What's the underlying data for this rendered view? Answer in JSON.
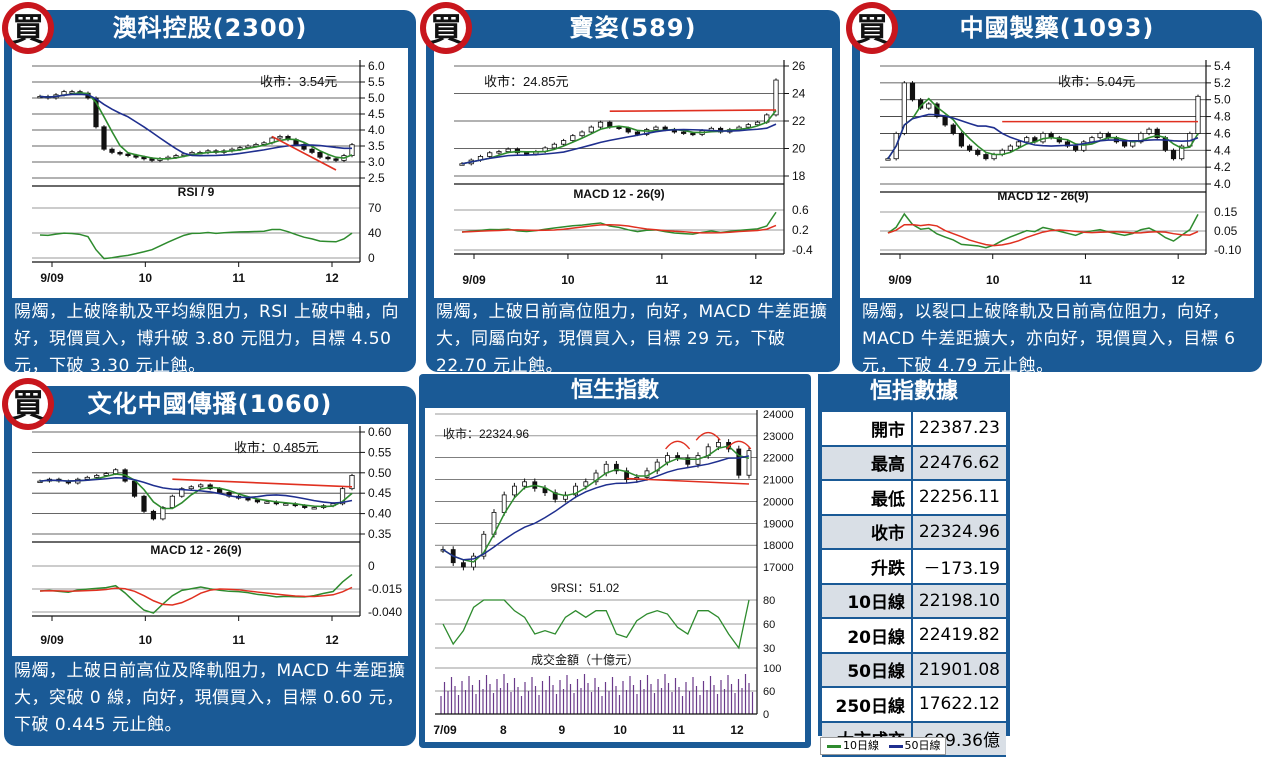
{
  "badge_char": "買",
  "panels": [
    {
      "title": "澳科控股(2300)",
      "close_label": "收市：3.54元",
      "desc": "陽燭，上破降軌及平均線阻力，RSI 上破中軸，向好，現價買入，博升破 3.80 元阻力，目標 4.50 元，下破 3.30 元止蝕。",
      "indicator_label": "RSI / 9",
      "price_ticks": [
        "6.0",
        "5.5",
        "5.0",
        "4.5",
        "4.0",
        "3.5",
        "3.0",
        "2.5"
      ],
      "ind_ticks": [
        "70",
        "40",
        "0"
      ],
      "x_ticks": [
        "9/09",
        "10",
        "11",
        "12"
      ]
    },
    {
      "title": "寶姿(589)",
      "close_label": "收市：24.85元",
      "desc": "陽燭，上破日前高位阻力，向好，MACD 牛差距擴大，同屬向好，現價買入，目標 29 元，下破 22.70 元止蝕。",
      "indicator_label": "MACD 12 - 26(9)",
      "price_ticks": [
        "26",
        "24",
        "22",
        "20",
        "18"
      ],
      "ind_ticks": [
        "0.6",
        "0.2",
        "-0.4"
      ],
      "x_ticks": [
        "9/09",
        "10",
        "11",
        "12"
      ]
    },
    {
      "title": "中國製藥(1093)",
      "close_label": "收市：5.04元",
      "desc": "陽燭，以裂口上破降軌及日前高位阻力，向好，MACD 牛差距擴大，亦向好，現價買入，目標 6 元，下破 4.79 元止蝕。",
      "indicator_label": "MACD 12 - 26(9)",
      "price_ticks": [
        "5.4",
        "5.2",
        "5.0",
        "4.8",
        "4.6",
        "4.4",
        "4.2",
        "4.0"
      ],
      "ind_ticks": [
        "0.15",
        "0.05",
        "-0.10"
      ],
      "x_ticks": [
        "9/09",
        "10",
        "11",
        "12"
      ]
    },
    {
      "title": "文化中國傳播(1060)",
      "close_label": "收市：0.485元",
      "desc": "陽燭，上破日前高位及降軌阻力，MACD 牛差距擴大，突破 0 線，向好，現價買入，目標 0.60 元，下破 0.445 元止蝕。",
      "indicator_label": "MACD 12 - 26(9)",
      "price_ticks": [
        "0.60",
        "0.55",
        "0.50",
        "0.45",
        "0.40",
        "0.35"
      ],
      "ind_ticks": [
        "0",
        "-0.015",
        "-0.040"
      ],
      "x_ticks": [
        "9/09",
        "10",
        "11",
        "12"
      ]
    }
  ],
  "hsi": {
    "title": "恒生指數",
    "close_label": "收市：22324.96",
    "rsi_label": "9RSI：51.02",
    "volume_label": "成交金額（十億元）",
    "price_ticks": [
      "24000",
      "23000",
      "22000",
      "21000",
      "20000",
      "19000",
      "18000",
      "17000"
    ],
    "rsi_ticks": [
      "80",
      "60",
      "30"
    ],
    "vol_ticks": [
      "100",
      "60",
      "0"
    ],
    "x_ticks": [
      "7/09",
      "8",
      "9",
      "10",
      "11",
      "12"
    ]
  },
  "stats": {
    "title": "恒指數據",
    "rows": [
      {
        "k": "開市",
        "v": "22387.23"
      },
      {
        "k": "最高",
        "v": "22476.62"
      },
      {
        "k": "最低",
        "v": "22256.11"
      },
      {
        "k": "收市",
        "v": "22324.96"
      },
      {
        "k": "升跌",
        "v": "－173.19"
      },
      {
        "k": "10日線",
        "v": "22198.10"
      },
      {
        "k": "20日線",
        "v": "22419.82"
      },
      {
        "k": "50日線",
        "v": "21901.08"
      },
      {
        "k": "250日線",
        "v": "17622.12"
      },
      {
        "k": "大市成交",
        "v": "609.36億"
      }
    ]
  },
  "legend": {
    "ma10": "10日線",
    "ma50": "50日線"
  },
  "colors": {
    "panel": "#1a5a96",
    "ma_short": "#2e8b2e",
    "ma_long": "#1f2f8f",
    "trend": "#e03020",
    "badge": "#c8161d"
  },
  "chart_data": [
    {
      "type": "line",
      "title": "澳科控股(2300)",
      "close": 3.54,
      "ylim": [
        2.5,
        6.0
      ],
      "indicator": "RSI / 9",
      "indicator_ylim": [
        0,
        70
      ],
      "x_ticks": [
        "9/09",
        "10",
        "11",
        "12"
      ],
      "series": [
        {
          "values": [
            5.05,
            5.0,
            5.1,
            5.2,
            5.2,
            5.15,
            5.0,
            4.1,
            3.4,
            3.3,
            3.25,
            3.2,
            3.15,
            3.1,
            3.05,
            3.1,
            3.15,
            3.2,
            3.25,
            3.3,
            3.3,
            3.35,
            3.3,
            3.35,
            3.4,
            3.45,
            3.5,
            3.55,
            3.6,
            3.75,
            3.8,
            3.7,
            3.55,
            3.4,
            3.3,
            3.15,
            3.1,
            3.05,
            3.2,
            3.54
          ]
        }
      ]
    },
    {
      "type": "line",
      "title": "寶姿(589)",
      "close": 24.85,
      "ylim": [
        17,
        26
      ],
      "indicator": "MACD 12 - 26(9)",
      "indicator_ylim": [
        -0.4,
        0.6
      ],
      "x_ticks": [
        "9/09",
        "10",
        "11",
        "12"
      ],
      "series": [
        {
          "values": [
            18.0,
            18.3,
            18.6,
            18.9,
            19.0,
            19.2,
            18.9,
            18.8,
            19.0,
            19.3,
            19.6,
            19.9,
            20.3,
            20.6,
            21.0,
            21.4,
            21.0,
            20.9,
            20.6,
            20.4,
            20.8,
            21.0,
            20.8,
            20.6,
            20.5,
            20.4,
            20.7,
            20.9,
            20.6,
            20.8,
            21.0,
            21.2,
            21.4,
            22.0,
            24.85
          ]
        }
      ]
    },
    {
      "type": "line",
      "title": "中國製藥(1093)",
      "close": 5.04,
      "ylim": [
        4.0,
        5.4
      ],
      "indicator": "MACD 12 - 26(9)",
      "indicator_ylim": [
        -0.1,
        0.15
      ],
      "x_ticks": [
        "9/09",
        "10",
        "11",
        "12"
      ],
      "series": [
        {
          "values": [
            4.3,
            4.6,
            5.2,
            5.0,
            4.9,
            4.95,
            4.8,
            4.7,
            4.6,
            4.45,
            4.4,
            4.35,
            4.3,
            4.35,
            4.4,
            4.45,
            4.5,
            4.55,
            4.5,
            4.6,
            4.55,
            4.5,
            4.45,
            4.4,
            4.5,
            4.55,
            4.6,
            4.55,
            4.5,
            4.45,
            4.5,
            4.6,
            4.65,
            4.55,
            4.4,
            4.3,
            4.45,
            4.6,
            5.04
          ]
        }
      ]
    },
    {
      "type": "line",
      "title": "文化中國傳播(1060)",
      "close": 0.485,
      "ylim": [
        0.33,
        0.6
      ],
      "indicator": "MACD 12 - 26(9)",
      "indicator_ylim": [
        -0.04,
        0
      ],
      "x_ticks": [
        "9/09",
        "10",
        "11",
        "12"
      ],
      "series": [
        {
          "values": [
            0.47,
            0.475,
            0.47,
            0.465,
            0.475,
            0.48,
            0.485,
            0.49,
            0.5,
            0.47,
            0.43,
            0.39,
            0.37,
            0.4,
            0.43,
            0.45,
            0.455,
            0.46,
            0.45,
            0.44,
            0.43,
            0.425,
            0.42,
            0.415,
            0.415,
            0.41,
            0.41,
            0.405,
            0.4,
            0.4,
            0.405,
            0.41,
            0.45,
            0.485
          ]
        }
      ]
    },
    {
      "type": "line",
      "title": "恒生指數",
      "close": 22324.96,
      "ylim": [
        16500,
        24000
      ],
      "indicator": "9RSI",
      "indicator_value": 51.02,
      "x_ticks": [
        "7/09",
        "8",
        "9",
        "10",
        "11",
        "12"
      ],
      "series": [
        {
          "values": [
            17800,
            17200,
            17000,
            17500,
            18500,
            19500,
            20300,
            20700,
            20900,
            20600,
            20400,
            20100,
            20300,
            20700,
            20900,
            21300,
            21700,
            21400,
            21000,
            21100,
            21400,
            21800,
            22100,
            22000,
            21700,
            22100,
            22500,
            22700,
            22400,
            21200,
            22324.96
          ]
        }
      ]
    }
  ]
}
